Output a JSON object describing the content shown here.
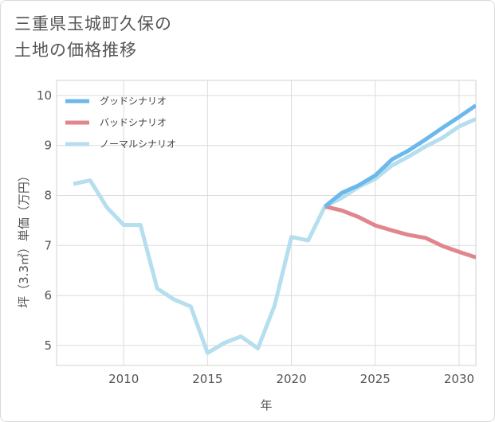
{
  "title_lines": [
    "三重県玉城町久保の",
    "土地の価格推移"
  ],
  "chart_data": {
    "type": "line",
    "xlabel": "年",
    "ylabel": "坪（3.3㎡）単価（万円）",
    "xlim": [
      2006,
      2031
    ],
    "ylim": [
      4.6,
      10.3
    ],
    "x_ticks": [
      2010,
      2015,
      2020,
      2025,
      2030
    ],
    "y_ticks": [
      5,
      6,
      7,
      8,
      9,
      10
    ],
    "grid": true,
    "legend_position": "top-left",
    "series": [
      {
        "name": "グッドシナリオ",
        "color": "#6cb8ea",
        "x": [
          2022,
          2023,
          2024,
          2025,
          2026,
          2027,
          2028,
          2029,
          2030,
          2031
        ],
        "y": [
          7.78,
          8.05,
          8.2,
          8.4,
          8.72,
          8.9,
          9.12,
          9.35,
          9.57,
          9.8
        ]
      },
      {
        "name": "バッドシナリオ",
        "color": "#e0868c",
        "x": [
          2022,
          2023,
          2024,
          2025,
          2026,
          2027,
          2028,
          2029,
          2030,
          2031
        ],
        "y": [
          7.78,
          7.7,
          7.57,
          7.4,
          7.3,
          7.21,
          7.15,
          6.99,
          6.87,
          6.76
        ]
      },
      {
        "name": "ノーマルシナリオ",
        "color": "#b5deee",
        "x": [
          2007,
          2008,
          2009,
          2010,
          2011,
          2012,
          2013,
          2014,
          2015,
          2016,
          2017,
          2018,
          2019,
          2020,
          2021,
          2022,
          2023,
          2024,
          2025,
          2026,
          2027,
          2028,
          2029,
          2030,
          2031
        ],
        "y": [
          8.23,
          8.3,
          7.76,
          7.41,
          7.41,
          6.14,
          5.92,
          5.78,
          4.85,
          5.05,
          5.18,
          4.94,
          5.8,
          7.17,
          7.1,
          7.78,
          7.95,
          8.17,
          8.33,
          8.6,
          8.78,
          8.98,
          9.15,
          9.38,
          9.53
        ]
      }
    ]
  }
}
